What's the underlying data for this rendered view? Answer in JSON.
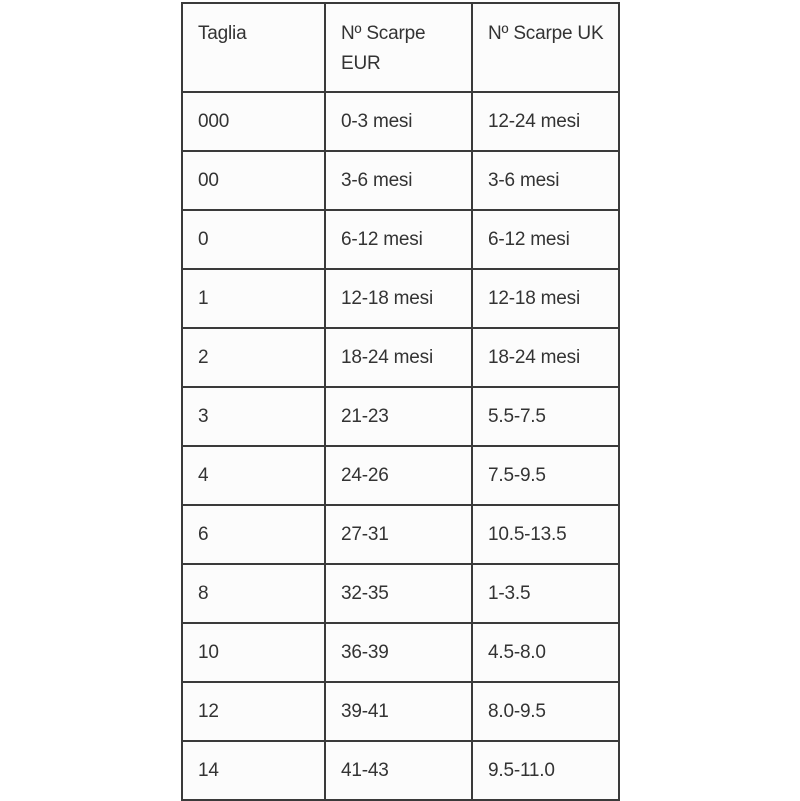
{
  "table": {
    "headers": [
      "Taglia",
      "Nº Scarpe EUR",
      "Nº Scarpe UK"
    ],
    "rows": [
      [
        "000",
        "0-3 mesi",
        "12-24 mesi"
      ],
      [
        "00",
        "3-6 mesi",
        "3-6 mesi"
      ],
      [
        "0",
        "6-12 mesi",
        "6-12 mesi"
      ],
      [
        "1",
        "12-18 mesi",
        "12-18 mesi"
      ],
      [
        "2",
        "18-24 mesi",
        "18-24 mesi"
      ],
      [
        "3",
        "21-23",
        "5.5-7.5"
      ],
      [
        "4",
        "24-26",
        "7.5-9.5"
      ],
      [
        "6",
        "27-31",
        "10.5-13.5"
      ],
      [
        "8",
        "32-35",
        "1-3.5"
      ],
      [
        "10",
        "36-39",
        "4.5-8.0"
      ],
      [
        "12",
        "39-41",
        "8.0-9.5"
      ],
      [
        "14",
        "41-43",
        "9.5-11.0"
      ]
    ]
  }
}
